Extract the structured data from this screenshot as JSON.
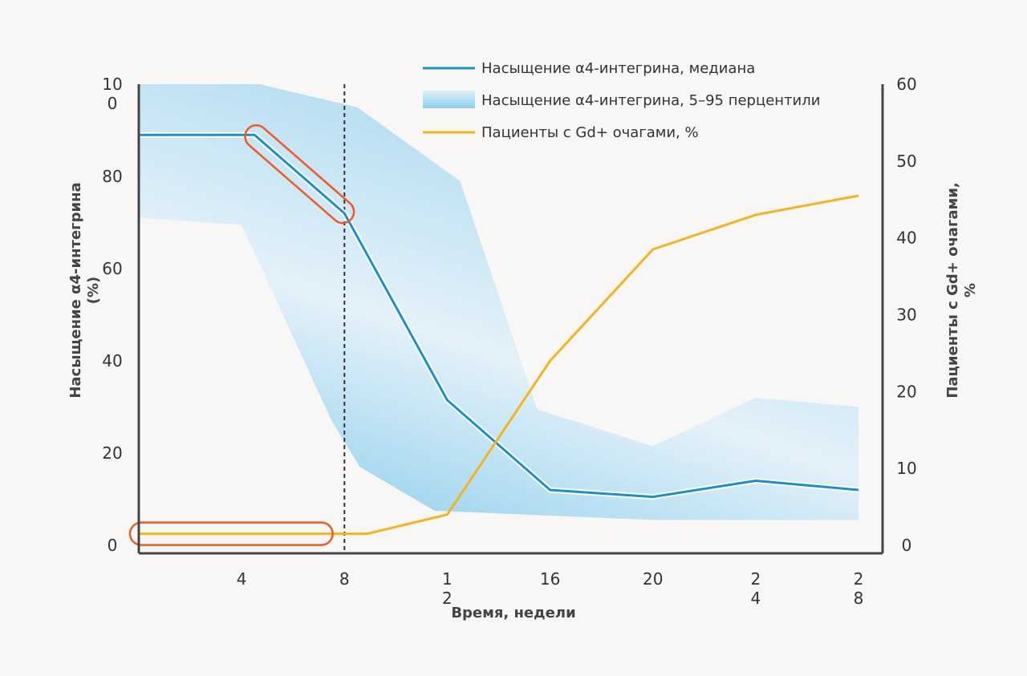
{
  "chart_data": {
    "type": "line",
    "xlabel": "Время, недели",
    "ylabel_left": [
      "Насыщение α4-интегрина",
      "(%)"
    ],
    "ylabel_right": [
      "Пациенты с Gd+ очагами,",
      "%"
    ],
    "x_ticks": [
      {
        "x": 4,
        "label": [
          "4"
        ]
      },
      {
        "x": 8,
        "label": [
          "8"
        ]
      },
      {
        "x": 12,
        "label": [
          "1",
          "2"
        ]
      },
      {
        "x": 16,
        "label": [
          "16"
        ]
      },
      {
        "x": 20,
        "label": [
          "20"
        ]
      },
      {
        "x": 24,
        "label": [
          "2",
          "4"
        ]
      },
      {
        "x": 28,
        "label": [
          "2",
          "8"
        ]
      }
    ],
    "xlim": [
      0,
      28
    ],
    "ylim_left": [
      0,
      100
    ],
    "ylim_right": [
      0,
      60
    ],
    "y_left_ticks": [
      {
        "v": 0,
        "label": [
          "0"
        ]
      },
      {
        "v": 20,
        "label": [
          "20"
        ]
      },
      {
        "v": 40,
        "label": [
          "40"
        ]
      },
      {
        "v": 60,
        "label": [
          "60"
        ]
      },
      {
        "v": 80,
        "label": [
          "80"
        ]
      },
      {
        "v": 100,
        "label": [
          "10",
          "0"
        ]
      }
    ],
    "y_right_ticks": [
      0,
      10,
      20,
      30,
      40,
      50,
      60
    ],
    "marker_x": 8,
    "legend": [
      {
        "key": "median",
        "label": "Насыщение α4-интегрина, медиана"
      },
      {
        "key": "band",
        "label": "Насыщение α4-интегрина, 5–95 перцентили"
      },
      {
        "key": "gd",
        "label": "Пациенты с Gd+ очагами, %"
      }
    ],
    "series": [
      {
        "name": "Насыщение α4-интегрина, медиана",
        "axis": "left",
        "color": "#1a8fd0",
        "points": [
          [
            0,
            89
          ],
          [
            4.5,
            89
          ],
          [
            8,
            72
          ],
          [
            12,
            31.5
          ],
          [
            16,
            12
          ],
          [
            20,
            10.5
          ],
          [
            24,
            14
          ],
          [
            28,
            12
          ]
        ]
      },
      {
        "name": "Пациенты с Gd+ очагами, %",
        "axis": "right",
        "color": "#f5b324",
        "points": [
          [
            0,
            1.5
          ],
          [
            8.9,
            1.5
          ],
          [
            12,
            4
          ],
          [
            16,
            24
          ],
          [
            20,
            38.5
          ],
          [
            24,
            43
          ],
          [
            28,
            45.5
          ]
        ]
      }
    ],
    "band": {
      "name": "Насыщение α4-интегрина, 5–95 перцентили",
      "axis": "left",
      "upper": [
        [
          0,
          100
        ],
        [
          4.7,
          100
        ],
        [
          8.5,
          95
        ],
        [
          12.5,
          79
        ],
        [
          15.5,
          29.5
        ],
        [
          20,
          21.5
        ],
        [
          24,
          32
        ],
        [
          28,
          30
        ]
      ],
      "lower": [
        [
          0,
          71
        ],
        [
          4,
          69.5
        ],
        [
          7.5,
          27
        ],
        [
          8.6,
          17
        ],
        [
          11.5,
          7.5
        ],
        [
          20,
          5.5
        ],
        [
          24,
          5.5
        ],
        [
          28,
          5.5
        ]
      ]
    },
    "highlights": [
      {
        "target": "median-drop",
        "from": [
          4.5,
          89
        ],
        "to": [
          8,
          72
        ],
        "color": "#ee5a24"
      },
      {
        "target": "gd-baseline",
        "from": [
          0,
          1.5
        ],
        "to": [
          7.2,
          1.5
        ],
        "color": "#ee5a24"
      }
    ]
  }
}
